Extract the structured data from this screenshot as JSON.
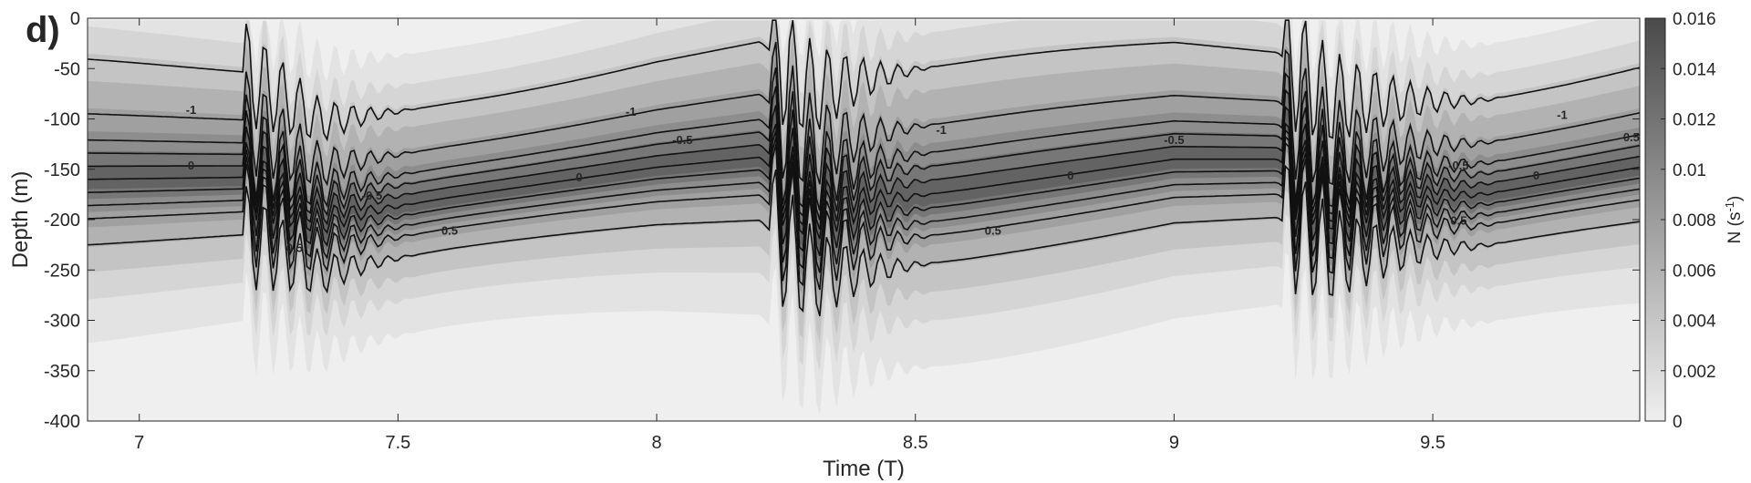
{
  "chart_data": {
    "type": "heatmap",
    "panel_label": "d)",
    "title": "",
    "xlabel": "Time (T)",
    "ylabel": "Depth (m)",
    "xlim": [
      6.9,
      9.9
    ],
    "ylim": [
      -400,
      0
    ],
    "x_ticks": [
      7,
      7.5,
      8,
      8.5,
      9,
      9.5
    ],
    "x_tick_labels": [
      "7",
      "7.5",
      "8",
      "8.5",
      "9",
      "9.5"
    ],
    "y_ticks": [
      0,
      -50,
      -100,
      -150,
      -200,
      -250,
      -300,
      -350,
      -400
    ],
    "y_tick_labels": [
      "0",
      "-50",
      "-100",
      "-150",
      "-200",
      "-250",
      "-300",
      "-350",
      "-400"
    ],
    "colorbar": {
      "label": "N (s",
      "label_superscript": "-1",
      "label_suffix": ")",
      "range": [
        0,
        0.016
      ],
      "ticks": [
        0,
        0.002,
        0.004,
        0.006,
        0.008,
        0.01,
        0.012,
        0.014,
        0.016
      ],
      "tick_labels": [
        "0",
        "0.002",
        "0.004",
        "0.006",
        "0.008",
        "0.01",
        "0.012",
        "0.014",
        "0.016"
      ],
      "colormap": "gray-reversed",
      "color_low": "#efefef",
      "color_high": "#4a4a4a"
    },
    "pycnocline_center_depth": [
      {
        "t": 6.9,
        "depth": -160
      },
      {
        "t": 7.2,
        "depth": -158
      },
      {
        "t": 7.35,
        "depth": -200
      },
      {
        "t": 7.6,
        "depth": -178
      },
      {
        "t": 8.0,
        "depth": -148
      },
      {
        "t": 8.2,
        "depth": -138
      },
      {
        "t": 8.3,
        "depth": -190
      },
      {
        "t": 8.6,
        "depth": -170
      },
      {
        "t": 9.0,
        "depth": -140
      },
      {
        "t": 9.2,
        "depth": -140
      },
      {
        "t": 9.3,
        "depth": -180
      },
      {
        "t": 9.6,
        "depth": -175
      },
      {
        "t": 9.9,
        "depth": -148
      }
    ],
    "wave_events": [
      {
        "start": 7.2,
        "end": 7.55,
        "amplitude_m": 55
      },
      {
        "start": 8.22,
        "end": 8.55,
        "amplitude_m": 75
      },
      {
        "start": 9.21,
        "end": 9.65,
        "amplitude_m": 70
      }
    ],
    "contours": {
      "levels": [
        -1.5,
        -1,
        -0.75,
        -0.5,
        -0.25,
        0,
        0.25,
        0.5,
        0.75,
        1
      ],
      "offsets_m": [
        -110,
        -60,
        -36,
        -24,
        -12,
        0,
        12,
        24,
        36,
        60
      ],
      "labels": [
        {
          "text": "-1",
          "t": 7.1,
          "depth": -95
        },
        {
          "text": "0",
          "t": 7.1,
          "depth": -150
        },
        {
          "text": "-0.5",
          "t": 7.45,
          "depth": -180
        },
        {
          "text": "0.5",
          "t": 7.6,
          "depth": -215
        },
        {
          "text": "0.5",
          "t": 7.3,
          "depth": -232
        },
        {
          "text": "-1",
          "t": 7.95,
          "depth": -97
        },
        {
          "text": "-0.5",
          "t": 8.05,
          "depth": -125
        },
        {
          "text": "0",
          "t": 7.85,
          "depth": -162
        },
        {
          "text": "-1",
          "t": 8.55,
          "depth": -115
        },
        {
          "text": "0.5",
          "t": 8.65,
          "depth": -215
        },
        {
          "text": "0",
          "t": 8.8,
          "depth": -160
        },
        {
          "text": "-0.5",
          "t": 9.0,
          "depth": -125
        },
        {
          "text": "-0.5",
          "t": 9.55,
          "depth": -150
        },
        {
          "text": "0",
          "t": 9.7,
          "depth": -160
        },
        {
          "text": "0.5",
          "t": 9.55,
          "depth": -205
        },
        {
          "text": "-1",
          "t": 9.75,
          "depth": -100
        },
        {
          "text": "-0.5",
          "t": 9.88,
          "depth": -122
        }
      ]
    }
  }
}
